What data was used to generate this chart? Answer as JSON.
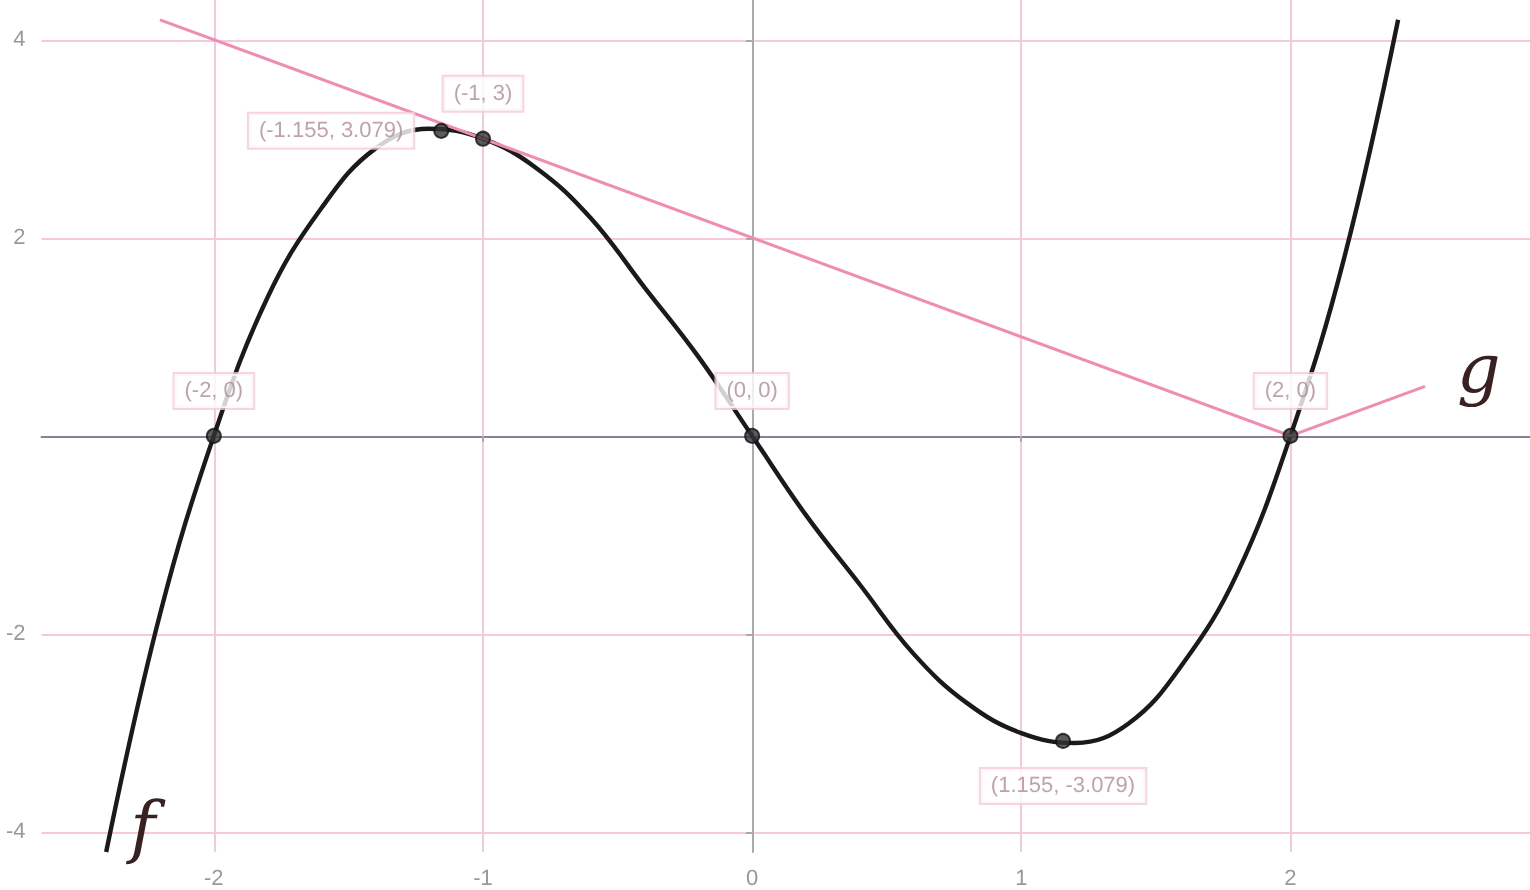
{
  "chart_data": {
    "type": "line",
    "xlim": [
      -2.64,
      2.89
    ],
    "ylim": [
      -4.2,
      4.4
    ],
    "xticks": [
      -2,
      -1,
      0,
      1,
      2
    ],
    "yticks": [
      -4,
      -2,
      2,
      4
    ],
    "grid": true,
    "marker": "none",
    "series": [
      {
        "name": "f",
        "color": "#1a1a1a",
        "x": [
          -2.4,
          -2.2,
          -2,
          -1.8,
          -1.6,
          -1.4,
          -1.2,
          -1,
          -0.8,
          -0.6,
          -0.4,
          -0.2,
          0,
          0.2,
          0.4,
          0.6,
          0.8,
          1,
          1.2,
          1.4,
          1.6,
          1.8,
          2,
          2.2,
          2.4
        ],
        "values": [
          -4.2,
          -1.8,
          0,
          1.4,
          2.3,
          2.9,
          3.1,
          3,
          2.7,
          2.2,
          1.5,
          0.8,
          0,
          -0.8,
          -1.5,
          -2.2,
          -2.7,
          -3,
          -3.1,
          -2.9,
          -2.3,
          -1.4,
          0,
          1.8,
          4.2
        ]
      },
      {
        "name": "g",
        "color": "#f08cb4",
        "x": [
          -2.2,
          2,
          2.5
        ],
        "values": [
          4.2,
          0,
          0.5
        ]
      },
      {
        "type": "scatter",
        "marker": "circle",
        "color": "#333333",
        "x": [
          -2,
          -1.155,
          -1,
          0,
          1.155,
          2
        ],
        "values": [
          0,
          3.079,
          3,
          0,
          -3.079,
          0
        ],
        "value_labels": [
          "(-2, 0)",
          "(-1.155, 3.079)",
          "(-1, 3)",
          "(0, 0)",
          "(1.155, -3.079)",
          "(2, 0)"
        ]
      }
    ]
  }
}
